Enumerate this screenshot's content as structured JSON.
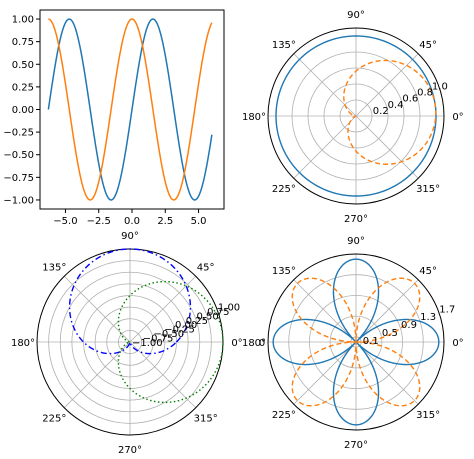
{
  "chart_data": [
    {
      "type": "line",
      "title": "",
      "xlabel": "",
      "ylabel": "",
      "xlim": [
        -6.912,
        6.912
      ],
      "ylim": [
        -1.1,
        1.1
      ],
      "xticks": [
        -5.0,
        -2.5,
        0.0,
        2.5,
        5.0
      ],
      "xtick_labels": [
        "−5.0",
        "−2.5",
        "0.0",
        "2.5",
        "5.0"
      ],
      "yticks": [
        1.0,
        0.75,
        0.5,
        0.25,
        0.0,
        -0.25,
        -0.5,
        -0.75,
        -1.0
      ],
      "ytick_labels": [
        "1.00",
        "0.75",
        "0.50",
        "0.25",
        "0.00",
        "−0.25",
        "−0.50",
        "−0.75",
        "−1.00"
      ],
      "x_range": [
        -6.283,
        6.0
      ],
      "series": [
        {
          "function": "sin(x)",
          "color": "#1f77b4",
          "style": "solid"
        },
        {
          "function": "cos(x)",
          "color": "#ff7f0e",
          "style": "solid"
        }
      ]
    },
    {
      "type": "polar",
      "theta_labels": [
        "0°",
        "45°",
        "90°",
        "135°",
        "180°",
        "225°",
        "270°",
        "315°"
      ],
      "rmax": 1.1,
      "rticks": [
        0.2,
        0.4,
        0.6,
        0.8,
        1.0
      ],
      "rtick_labels": [
        "0.2",
        "0.4",
        "0.6",
        "0.8",
        "1.0"
      ],
      "series": [
        {
          "function": "r = 1",
          "color": "#1f77b4",
          "style": "solid"
        },
        {
          "function": "r = 0.5·(1 + sin(θ))",
          "theta_offset_deg": 277,
          "color": "#ff7f0e",
          "style": "dashed"
        }
      ]
    },
    {
      "type": "polar",
      "theta_labels": [
        "0°",
        "45°",
        "90°",
        "135°",
        "180°",
        "225°",
        "270°",
        "315°"
      ],
      "rmin": -1.0,
      "rmax": 1.0,
      "rticks": [
        -1.0,
        -0.75,
        -0.5,
        -0.25,
        0.0,
        0.25,
        0.5,
        0.75,
        1.0
      ],
      "rtick_labels": [
        "−1.00",
        "−0.75",
        "−0.50",
        "−0.25",
        "0.00",
        "0.25",
        "0.50",
        "0.75",
        "1.00"
      ],
      "series": [
        {
          "function": "r = sin(θ)",
          "color": "#0000ff",
          "style": "dashdot"
        },
        {
          "function": "r = cos(θ)",
          "color": "#008000",
          "style": "dotted"
        }
      ]
    },
    {
      "type": "polar",
      "theta_labels": [
        "0°",
        "45°",
        "90°",
        "135°",
        "180°",
        "225°",
        "270°",
        "315°"
      ],
      "extra_theta_label": "0",
      "rmax": 1.7,
      "rticks": [
        0.1,
        0.5,
        0.9,
        1.3,
        1.7
      ],
      "rtick_labels": [
        "0.1",
        "0.5",
        "0.9",
        "1.3",
        "1.7"
      ],
      "series": [
        {
          "function": "r = |cos(2θ)| · 1.6 (four-petal rose)",
          "color": "#1f77b4",
          "style": "solid"
        },
        {
          "function": "r = |sin(2θ)| · 1.6 (four-petal rose)",
          "color": "#ff7f0e",
          "style": "dashed"
        }
      ]
    }
  ]
}
